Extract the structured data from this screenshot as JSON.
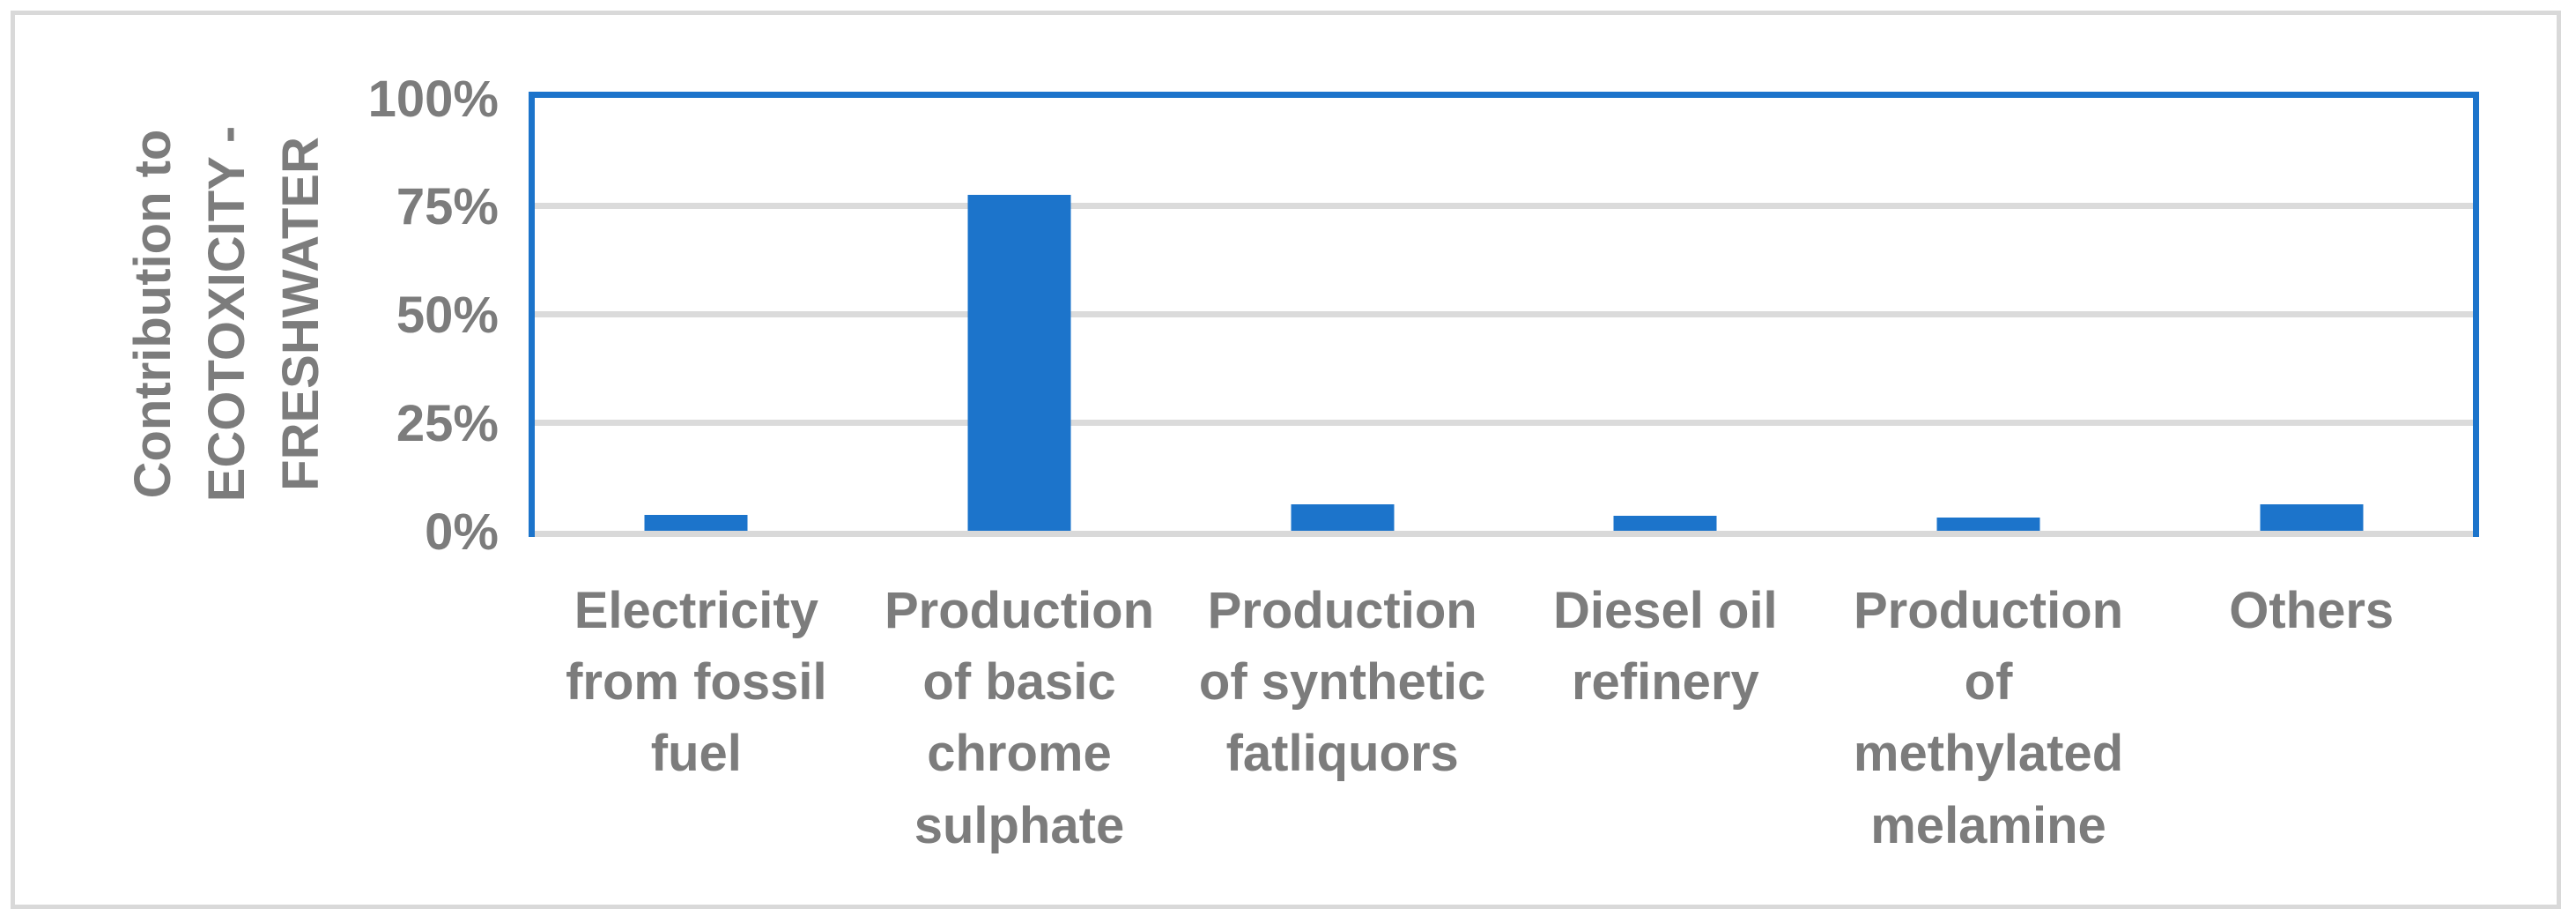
{
  "chart_data": {
    "type": "bar",
    "title": "",
    "ylabel": "Contribution to\nECOTOXICITY -\nFRESHWATER",
    "xlabel": "",
    "categories": [
      "Electricity from fossil fuel",
      "Production of basic chrome sulphate",
      "Production of synthetic fatliquors",
      "Diesel oil refinery",
      "Production of methylated melamine",
      "Others"
    ],
    "categories_wrapped": [
      "Electricity\nfrom fossil\nfuel",
      "Production\nof basic\nchrome\nsulphate",
      "Production\nof synthetic\nfatliquors",
      "Diesel oil\nrefinery",
      "Production\nof\nmethylated\nmelamine",
      "Others"
    ],
    "values": [
      3.7,
      77.5,
      6.2,
      3.4,
      3.1,
      6.2
    ],
    "unit": "%",
    "series_name": "Contribution",
    "y_ticks": [
      "100%",
      "75%",
      "50%",
      "25%",
      "0%"
    ],
    "y_tick_values": [
      100,
      75,
      50,
      25,
      0
    ],
    "ylim": [
      0,
      100
    ],
    "gridlines": [
      25,
      50,
      75
    ],
    "grid": true,
    "legend": false,
    "colors": {
      "bar": "#1C74CB",
      "plot_border": "#1C74CB",
      "gridline": "#DBDBDB",
      "axis_line": "#D9D9D9",
      "text": "#7C7C7C",
      "outer_border": "#D9D9D9",
      "background": "#FFFFFF"
    }
  }
}
